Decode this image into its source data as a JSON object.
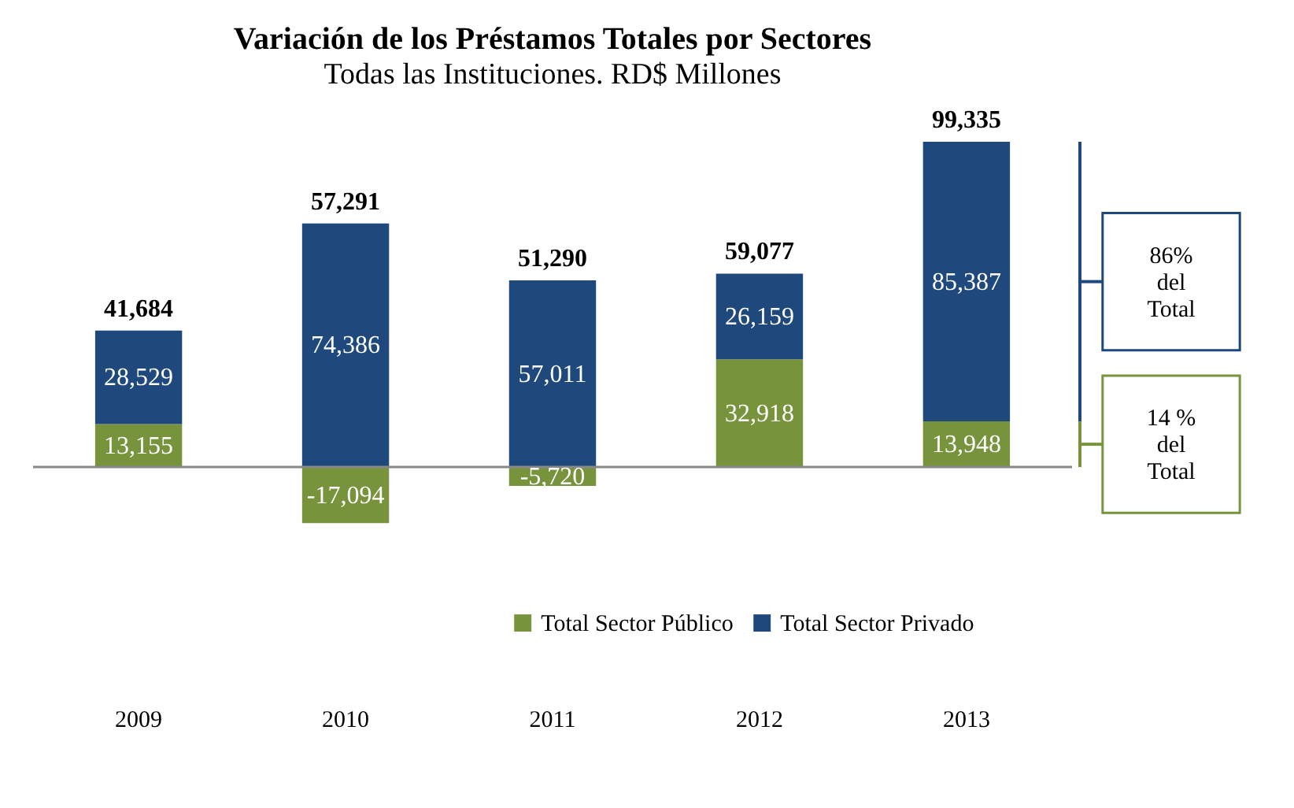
{
  "chart_data": {
    "type": "bar",
    "title": "Variación de los Préstamos Totales  por Sectores",
    "subtitle": "Todas las Instituciones. RD$ Millones",
    "categories": [
      "2009",
      "2010",
      "2011",
      "2012",
      "2013"
    ],
    "stacked": true,
    "series": [
      {
        "name": "Total Sector Público",
        "color": "#77933c",
        "values": [
          13155,
          -17094,
          -5720,
          32918,
          13948
        ],
        "value_labels": [
          "13,155",
          "-17,094",
          "-5,720",
          "32,918",
          "13,948"
        ]
      },
      {
        "name": "Total Sector Privado",
        "color": "#1f497d",
        "values": [
          28529,
          74386,
          57011,
          26159,
          85387
        ],
        "value_labels": [
          "28,529",
          "74,386",
          "57,011",
          "26,159",
          "85,387"
        ]
      }
    ],
    "totals": [
      "41,684",
      "57,291",
      "51,290",
      "59,077",
      "99,335"
    ],
    "legend": "bottom",
    "annotations": [
      "14 %\ndel\nTotal",
      "86%\ndel\nTotal"
    ]
  }
}
